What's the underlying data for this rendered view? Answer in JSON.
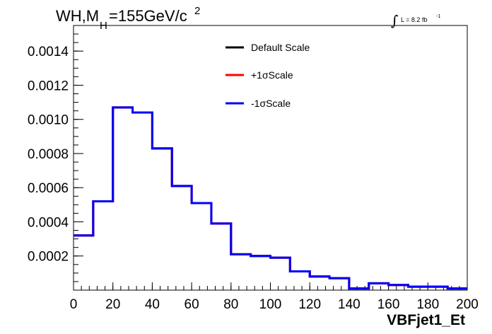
{
  "title": {
    "main": "WH,M",
    "subscript": "H",
    "rest": "=155GeV/c",
    "superscript": "2"
  },
  "luminosity": {
    "integral_symbol": "∫",
    "text": "L = 8.2 fb",
    "exponent": "-1"
  },
  "legend": [
    {
      "label": "Default Scale",
      "color": "#000000"
    },
    {
      "label": "+1σScale",
      "color": "#ff0000"
    },
    {
      "label": "-1σScale",
      "color": "#0000ff"
    }
  ],
  "chart_data": {
    "type": "line",
    "style": "step histogram",
    "xlabel": "VBFjet1_Et",
    "ylabel": "",
    "xlim": [
      0,
      200
    ],
    "ylim": [
      0,
      0.00155
    ],
    "x_ticks": [
      "0",
      "20",
      "40",
      "60",
      "80",
      "100",
      "120",
      "140",
      "160",
      "180",
      "200"
    ],
    "y_ticks": [
      "0.0002",
      "0.0004",
      "0.0006",
      "0.0008",
      "0.0010",
      "0.0012",
      "0.0014"
    ],
    "bin_edges": [
      0,
      10,
      20,
      30,
      40,
      50,
      60,
      70,
      80,
      90,
      100,
      110,
      120,
      130,
      140,
      150,
      160,
      170,
      180,
      190,
      200
    ],
    "series": [
      {
        "name": "Default Scale",
        "color": "#000000",
        "values": [
          0.00032,
          0.00052,
          0.00107,
          0.00104,
          0.00083,
          0.00061,
          0.00051,
          0.00039,
          0.00021,
          0.0002,
          0.00019,
          0.00011,
          8e-05,
          7e-05,
          1e-05,
          4e-05,
          3e-05,
          2e-05,
          2e-05,
          1e-05
        ]
      },
      {
        "name": "+1σScale",
        "color": "#ff0000",
        "values": [
          0.00032,
          0.00052,
          0.00107,
          0.00104,
          0.00083,
          0.00061,
          0.00051,
          0.00039,
          0.00021,
          0.0002,
          0.00019,
          0.00011,
          8e-05,
          7e-05,
          1e-05,
          4e-05,
          3e-05,
          2e-05,
          2e-05,
          1e-05
        ]
      },
      {
        "name": "-1σScale",
        "color": "#0000ff",
        "values": [
          0.00032,
          0.00052,
          0.00107,
          0.00104,
          0.00083,
          0.00061,
          0.00051,
          0.00039,
          0.00021,
          0.0002,
          0.00019,
          0.00011,
          8e-05,
          7e-05,
          1e-05,
          4e-05,
          3e-05,
          2e-05,
          2e-05,
          1e-05
        ]
      }
    ]
  }
}
